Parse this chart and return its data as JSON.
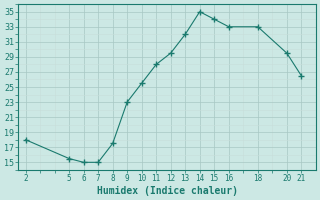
{
  "x": [
    2,
    5,
    6,
    7,
    8,
    9,
    10,
    11,
    12,
    13,
    14,
    15,
    16,
    18,
    20,
    21
  ],
  "y": [
    18.0,
    15.5,
    15.0,
    15.0,
    17.5,
    23.0,
    25.5,
    28.0,
    29.5,
    32.0,
    35.0,
    34.0,
    33.0,
    33.0,
    29.5,
    26.5
  ],
  "line_color": "#1a7a6e",
  "marker": "+",
  "marker_size": 4,
  "bg_color": "#cce8e4",
  "grid_color_major": "#b8d4cf",
  "grid_color_minor": "#d0e6e2",
  "xlabel": "Humidex (Indice chaleur)",
  "xlim": [
    1.5,
    22
  ],
  "ylim": [
    14,
    36
  ],
  "xticks": [
    2,
    5,
    6,
    7,
    8,
    9,
    10,
    11,
    12,
    13,
    14,
    15,
    16,
    18,
    20,
    21
  ],
  "yticks": [
    15,
    17,
    19,
    21,
    23,
    25,
    27,
    29,
    31,
    33,
    35
  ],
  "tick_color": "#1a7a6e",
  "label_color": "#1a7a6e",
  "xlabel_fontsize": 7,
  "tick_fontsize": 5.5
}
